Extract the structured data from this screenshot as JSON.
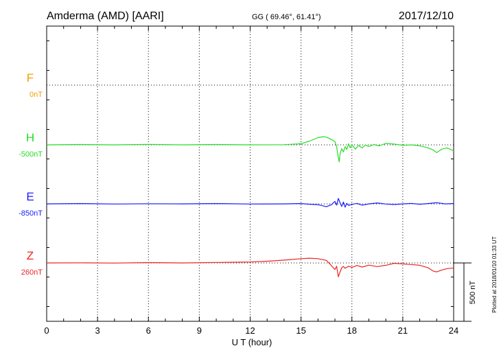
{
  "header": {
    "station": "Amderma (AMD)  [AARI]",
    "coords": "GG ( 69.46°,  61.41°)",
    "date": "2017/12/10"
  },
  "side_note": "Plotted at 2018/01/10 01:33 UT",
  "scale_label": "500 nT",
  "chart_data": {
    "type": "line",
    "xlabel": "U T (hour)",
    "xlim": [
      0,
      24
    ],
    "x_ticks": [
      "0",
      "3",
      "6",
      "9",
      "12",
      "15",
      "18",
      "21",
      "24"
    ],
    "grid": true,
    "nT_per_channel_step": 375,
    "series": [
      {
        "name": "F",
        "baseline_label": "0nT",
        "color": "#f0a000",
        "x": [],
        "y": []
      },
      {
        "name": "H",
        "baseline_label": "-500nT",
        "color": "#22dd22",
        "x": [
          0,
          2,
          4,
          6,
          8,
          10,
          12,
          14,
          15,
          15.5,
          16,
          16.3,
          16.5,
          16.8,
          17.0,
          17.1,
          17.2,
          17.25,
          17.3,
          17.4,
          17.5,
          17.6,
          17.7,
          17.8,
          17.9,
          18.0,
          18.2,
          18.4,
          18.6,
          18.8,
          19.0,
          19.3,
          19.6,
          20.0,
          20.5,
          21.0,
          21.5,
          22.0,
          22.5,
          22.8,
          23.0,
          23.3,
          23.6,
          24.0
        ],
        "y": [
          -500,
          -498,
          -500,
          -497,
          -500,
          -498,
          -500,
          -499,
          -493,
          -476,
          -454,
          -448,
          -451,
          -466,
          -479,
          -511,
          -583,
          -608,
          -556,
          -524,
          -545,
          -511,
          -529,
          -493,
          -519,
          -498,
          -527,
          -504,
          -519,
          -501,
          -511,
          -498,
          -506,
          -491,
          -495,
          -503,
          -500,
          -506,
          -519,
          -533,
          -549,
          -527,
          -519,
          -537
        ]
      },
      {
        "name": "E",
        "baseline_label": "-850nT",
        "color": "#1a1aff",
        "x": [
          0,
          2,
          4,
          6,
          8,
          10,
          12,
          14,
          15,
          15.5,
          16,
          16.5,
          16.8,
          17.0,
          17.1,
          17.2,
          17.3,
          17.4,
          17.5,
          17.6,
          17.7,
          17.8,
          18.0,
          18.3,
          18.6,
          19.0,
          19.5,
          20.0,
          20.5,
          21.0,
          21.5,
          22.0,
          22.5,
          23.0,
          23.5,
          24.0
        ],
        "y": [
          -850,
          -848,
          -851,
          -849,
          -850,
          -848,
          -851,
          -850,
          -848,
          -852,
          -855,
          -868,
          -855,
          -834,
          -858,
          -815,
          -843,
          -866,
          -838,
          -871,
          -847,
          -860,
          -853,
          -847,
          -858,
          -850,
          -844,
          -851,
          -854,
          -850,
          -847,
          -852,
          -848,
          -842,
          -850,
          -848
        ]
      },
      {
        "name": "Z",
        "baseline_label": "260nT",
        "color": "#ee2222",
        "x": [
          0,
          2,
          4,
          6,
          8,
          10,
          12,
          13,
          14,
          15,
          15.5,
          16,
          16.5,
          16.8,
          17.0,
          17.1,
          17.2,
          17.3,
          17.4,
          17.5,
          17.6,
          17.8,
          18.0,
          18.3,
          18.6,
          19.0,
          19.5,
          20.0,
          20.5,
          21.0,
          21.5,
          22.0,
          22.5,
          22.8,
          23.0,
          23.3,
          23.6,
          24.0
        ],
        "y": [
          260,
          261,
          259,
          262,
          260,
          263,
          266,
          271,
          278,
          287,
          290,
          287,
          276,
          242,
          218,
          239,
          172,
          203,
          229,
          238,
          226,
          239,
          232,
          244,
          234,
          246,
          237,
          245,
          258,
          254,
          250,
          245,
          229,
          208,
          203,
          215,
          224,
          228
        ]
      }
    ]
  }
}
